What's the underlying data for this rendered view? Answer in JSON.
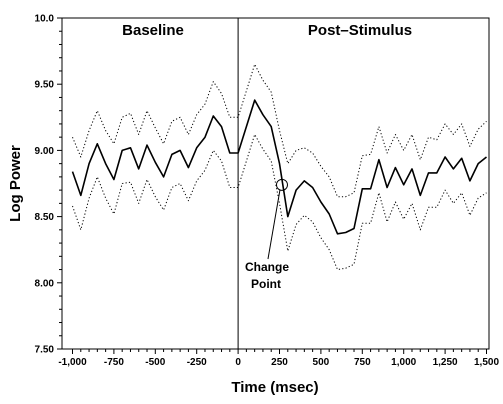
{
  "chart_data": {
    "type": "line",
    "xlabel": "Time (msec)",
    "ylabel": "Log Power",
    "xlim": [
      -1050,
      1500
    ],
    "ylim": [
      7.5,
      10.0
    ],
    "x_ticks": [
      -1000,
      -750,
      -500,
      -250,
      0,
      250,
      500,
      750,
      1000,
      1250,
      1500
    ],
    "x_tick_labels": [
      "-1,000",
      "-750",
      "-500",
      "-250",
      "0",
      "250",
      "500",
      "750",
      "1,000",
      "1,250",
      "1,500"
    ],
    "y_ticks": [
      7.5,
      8.0,
      8.5,
      9.0,
      9.5,
      10.0
    ],
    "y_tick_labels": [
      "7.50",
      "8.00",
      "8.50",
      "9.00",
      "9.50",
      "10.0"
    ],
    "grid": false,
    "region_labels": [
      "Baseline",
      "Post–Stimulus"
    ],
    "stimulus_line_x": 0,
    "annotation": {
      "text_lines": [
        "Change",
        "Point"
      ],
      "x": 265,
      "y": 8.74
    },
    "x": [
      -1000,
      -950,
      -900,
      -850,
      -800,
      -750,
      -700,
      -650,
      -600,
      -550,
      -500,
      -450,
      -400,
      -350,
      -300,
      -250,
      -200,
      -150,
      -100,
      -50,
      0,
      50,
      100,
      150,
      200,
      250,
      300,
      350,
      400,
      450,
      500,
      550,
      600,
      650,
      700,
      750,
      800,
      850,
      900,
      950,
      1000,
      1050,
      1100,
      1150,
      1200,
      1250,
      1300,
      1350,
      1400,
      1450,
      1500
    ],
    "series": [
      {
        "style": "solid",
        "values": [
          8.84,
          8.66,
          8.9,
          9.05,
          8.9,
          8.78,
          9.0,
          9.02,
          8.86,
          9.04,
          8.91,
          8.8,
          8.97,
          9.0,
          8.87,
          9.02,
          9.1,
          9.26,
          9.18,
          8.98,
          8.98,
          9.18,
          9.38,
          9.27,
          9.18,
          8.9,
          8.5,
          8.7,
          8.77,
          8.72,
          8.61,
          8.52,
          8.37,
          8.38,
          8.41,
          8.71,
          8.71,
          8.93,
          8.72,
          8.87,
          8.74,
          8.86,
          8.66,
          8.83,
          8.83,
          8.95,
          8.86,
          8.94,
          8.77,
          8.9,
          8.95
        ]
      },
      {
        "style": "dotted",
        "values": [
          9.1,
          8.95,
          9.15,
          9.3,
          9.15,
          9.05,
          9.25,
          9.28,
          9.12,
          9.3,
          9.17,
          9.05,
          9.22,
          9.25,
          9.12,
          9.27,
          9.35,
          9.52,
          9.43,
          9.25,
          9.25,
          9.45,
          9.65,
          9.53,
          9.44,
          9.15,
          8.9,
          9.0,
          9.02,
          8.98,
          8.88,
          8.8,
          8.65,
          8.65,
          8.68,
          8.96,
          8.97,
          9.18,
          8.98,
          9.12,
          9.0,
          9.12,
          8.93,
          9.1,
          9.08,
          9.2,
          9.12,
          9.2,
          9.03,
          9.16,
          9.22
        ]
      },
      {
        "style": "dotted",
        "values": [
          8.58,
          8.4,
          8.64,
          8.8,
          8.64,
          8.52,
          8.75,
          8.76,
          8.6,
          8.78,
          8.65,
          8.55,
          8.72,
          8.75,
          8.62,
          8.77,
          8.85,
          9.0,
          8.92,
          8.72,
          8.72,
          8.92,
          9.12,
          9.01,
          8.92,
          8.6,
          8.24,
          8.44,
          8.51,
          8.46,
          8.34,
          8.25,
          8.1,
          8.11,
          8.14,
          8.45,
          8.45,
          8.68,
          8.46,
          8.61,
          8.48,
          8.6,
          8.4,
          8.57,
          8.57,
          8.7,
          8.6,
          8.68,
          8.51,
          8.64,
          8.68
        ]
      }
    ]
  }
}
